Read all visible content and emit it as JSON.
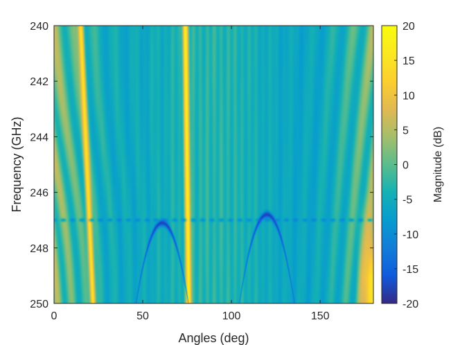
{
  "chart_data": {
    "type": "heatmap",
    "xlabel": "Angles (deg)",
    "ylabel": "Frequency (GHz)",
    "xlim": [
      0,
      180
    ],
    "ylim": [
      240,
      250
    ],
    "y_reversed": true,
    "x_ticks": [
      0,
      50,
      100,
      150
    ],
    "y_ticks": [
      240,
      242,
      244,
      246,
      248,
      250
    ],
    "x_tick_labels": [
      "0",
      "50",
      "100",
      "150"
    ],
    "y_tick_labels": [
      "240",
      "242",
      "244",
      "246",
      "248",
      "250"
    ],
    "colorbar": {
      "label": "Magnitude (dB)",
      "range": [
        -20,
        20
      ],
      "ticks": [
        20,
        15,
        10,
        5,
        0,
        -5,
        -10,
        -15,
        -20
      ],
      "tick_labels": [
        "20",
        "15",
        "10",
        "5",
        "0",
        "-5",
        "-10",
        "-15",
        "-20"
      ],
      "colormap": "parula"
    },
    "features": [
      {
        "kind": "bright-ridge",
        "angle_deg_at_240GHz": 15,
        "angle_deg_at_250GHz": 22,
        "magnitude_db": 15
      },
      {
        "kind": "bright-ridge",
        "angle_deg_at_240GHz": 74,
        "angle_deg_at_250GHz": 76,
        "magnitude_db": 17
      },
      {
        "kind": "bright-region",
        "angle_deg_range": [
          170,
          180
        ],
        "frequency_range_ghz": [
          246,
          250
        ],
        "magnitude_db": 15
      },
      {
        "kind": "null-arc",
        "center_angle_deg": 61,
        "center_frequency_ghz": 247.1,
        "magnitude_db": -18
      },
      {
        "kind": "null-arc",
        "center_angle_deg": 120,
        "center_frequency_ghz": 246.8,
        "magnitude_db": -18
      },
      {
        "kind": "null-line",
        "frequency_ghz": 247.0,
        "magnitude_db": -14
      }
    ],
    "grid": false
  }
}
